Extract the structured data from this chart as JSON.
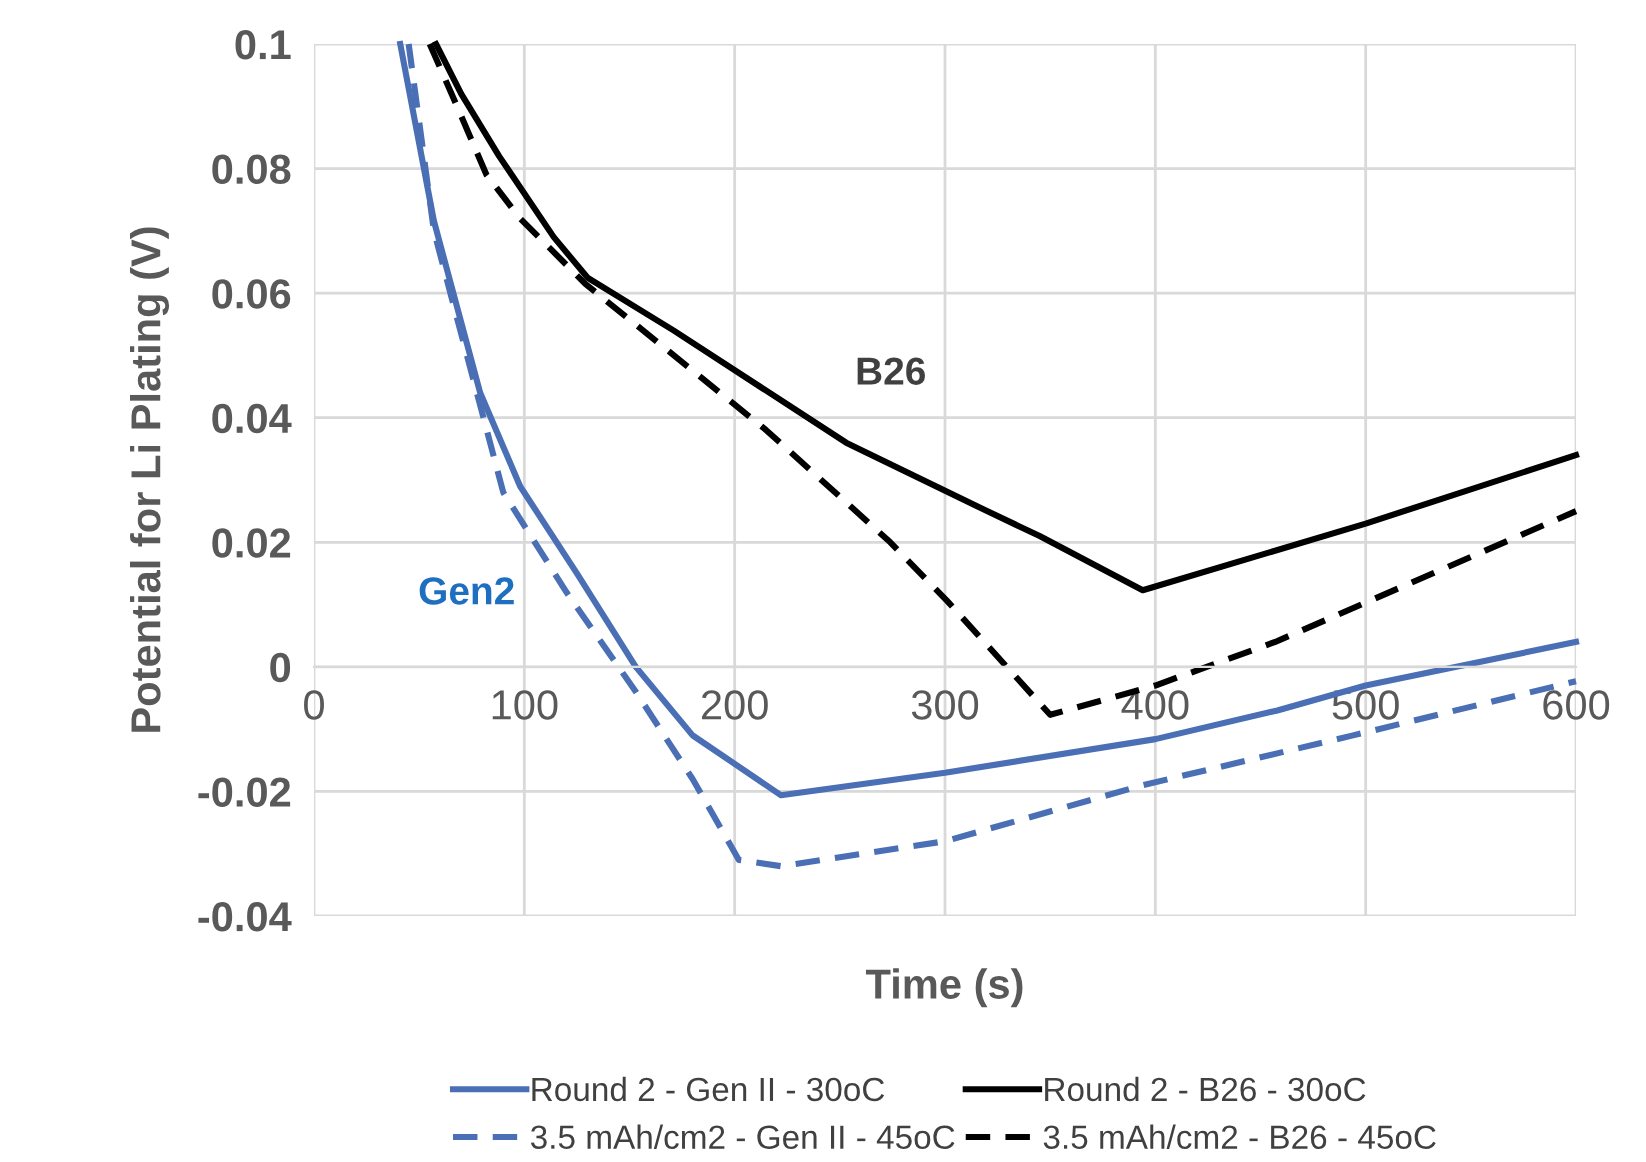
{
  "chart_data": {
    "type": "line",
    "xlabel": "Time (s)",
    "ylabel": "Potential for Li Plating (V)",
    "xlim": [
      0,
      600
    ],
    "xticks": [
      0,
      100,
      200,
      300,
      400,
      500,
      600
    ],
    "ylim": [
      -0.04,
      0.1
    ],
    "yticks": [
      -0.04,
      -0.02,
      0,
      0.02,
      0.04,
      0.06,
      0.08,
      0.1
    ],
    "grid": true,
    "legend": "bottom",
    "marker": "none",
    "annotations": [
      "B26",
      "Gen2"
    ],
    "series": [
      {
        "name": "Round 2 - Gen II - 30oC",
        "color": "#4a6fb5",
        "line_style": "solid",
        "x": [
          41,
          57,
          79,
          98,
          125,
          153,
          180,
          222,
          300,
          400,
          458,
          500,
          600
        ],
        "values": [
          0.1,
          0.0716,
          0.044,
          0.029,
          0.015,
          0.0,
          -0.011,
          -0.0206,
          -0.017,
          -0.0116,
          -0.007,
          -0.003,
          0.004
        ]
      },
      {
        "name": "3.5 mAh/cm2 - Gen II - 45oC",
        "color": "#4a6fb5",
        "line_style": "dashed",
        "x": [
          45,
          57,
          79,
          90,
          120,
          153,
          180,
          202,
          222,
          300,
          394,
          494,
          600
        ],
        "values": [
          0.1,
          0.07,
          0.042,
          0.028,
          0.012,
          -0.004,
          -0.018,
          -0.031,
          -0.032,
          -0.028,
          -0.019,
          -0.011,
          -0.0023
        ]
      },
      {
        "name": "Round 2 - B26 - 30oC",
        "color": "#000000",
        "line_style": "solid",
        "x": [
          58,
          70,
          88,
          114,
          130,
          171,
          253,
          317,
          345,
          394,
          500,
          600
        ],
        "values": [
          0.1,
          0.092,
          0.082,
          0.069,
          0.0625,
          0.054,
          0.036,
          0.0255,
          0.021,
          0.0123,
          0.023,
          0.034
        ]
      },
      {
        "name": "3.5 mAh/cm2 - B26 - 45oC",
        "color": "#000000",
        "line_style": "dashed",
        "x": [
          55,
          68,
          82,
          98,
          129,
          215,
          274,
          301,
          350,
          400,
          457,
          600
        ],
        "values": [
          0.1,
          0.09,
          0.079,
          0.072,
          0.0615,
          0.038,
          0.02,
          0.0106,
          -0.0077,
          -0.003,
          0.004,
          0.025
        ]
      }
    ]
  }
}
